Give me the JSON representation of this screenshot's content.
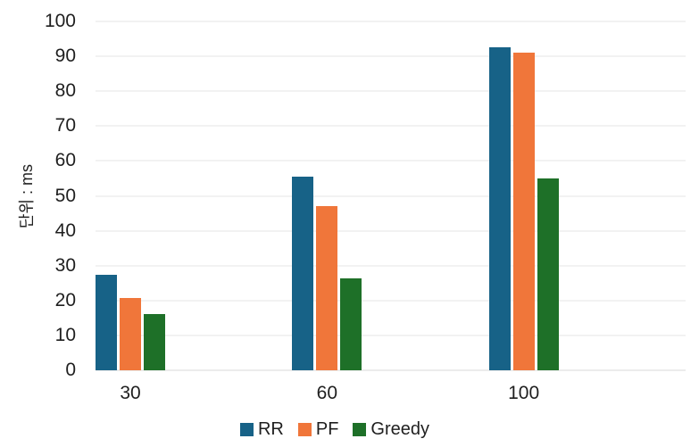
{
  "chart_data": {
    "type": "bar",
    "title": "",
    "xlabel": "",
    "ylabel": "단위 : ms",
    "categories": [
      "30",
      "60",
      "100"
    ],
    "series": [
      {
        "name": "RR",
        "color": "#176287",
        "values": [
          27.3,
          55.5,
          92.5
        ]
      },
      {
        "name": "PF",
        "color": "#f0763a",
        "values": [
          20.8,
          47.0,
          91.0
        ]
      },
      {
        "name": "Greedy",
        "color": "#1e7028",
        "values": [
          16.2,
          26.4,
          55.0
        ]
      }
    ],
    "ylim": [
      0,
      100
    ],
    "ytick_step": 10,
    "ytick_labels": [
      "0",
      "10",
      "20",
      "30",
      "40",
      "50",
      "60",
      "70",
      "80",
      "90",
      "100"
    ],
    "grid": true,
    "legend_position": "bottom"
  },
  "style": {
    "background_color": "#ffffff",
    "gridline_color": "#f2f2f2",
    "baseline_color": "#ececec",
    "text_color": "#1f1f1f"
  }
}
